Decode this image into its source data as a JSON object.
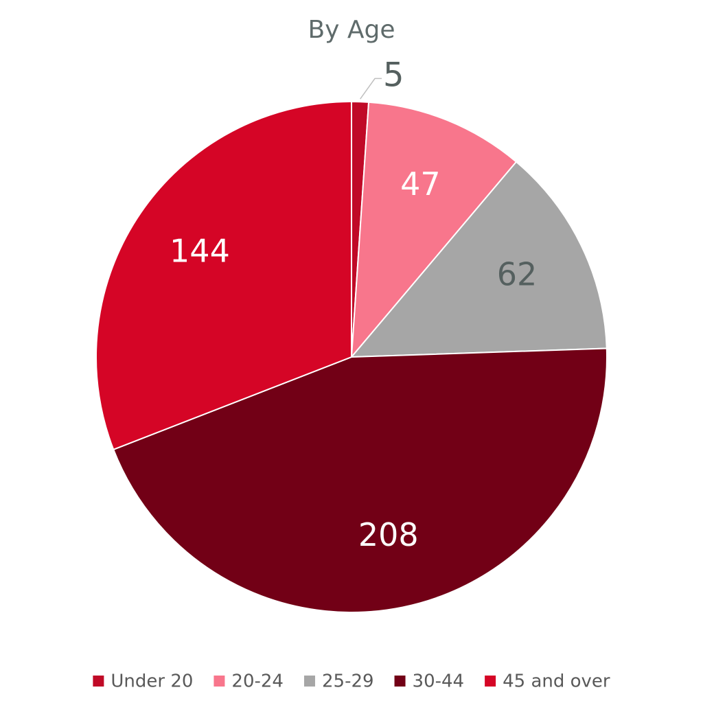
{
  "chart_data": {
    "type": "pie",
    "title": "By Age",
    "categories": [
      "Under 20",
      "20-24",
      "25-29",
      "30-44",
      "45 and over"
    ],
    "values": [
      5,
      47,
      62,
      208,
      144
    ],
    "colors": [
      "#c00a27",
      "#f8768c",
      "#a6a6a6",
      "#720016",
      "#d50526"
    ],
    "label_colors": [
      "#55605f",
      "#ffffff",
      "#55605f",
      "#ffffff",
      "#ffffff"
    ],
    "legend": "bottom"
  }
}
